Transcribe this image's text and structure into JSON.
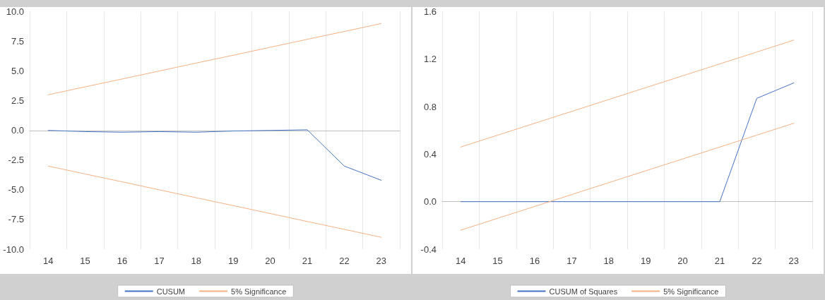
{
  "chart_data": [
    {
      "type": "line",
      "categories": [
        "14",
        "15",
        "16",
        "17",
        "18",
        "19",
        "20",
        "21",
        "22",
        "23"
      ],
      "ylim": [
        -10,
        10
      ],
      "yticks": [
        {
          "value": -10,
          "label": "-10.0"
        },
        {
          "value": -7.5,
          "label": "-7.5"
        },
        {
          "value": -5,
          "label": "-5.0"
        },
        {
          "value": -2.5,
          "label": "-2.5"
        },
        {
          "value": 0,
          "label": "0.0"
        },
        {
          "value": 2.5,
          "label": "2.5"
        },
        {
          "value": 5,
          "label": "5.0"
        },
        {
          "value": 7.5,
          "label": "7.5"
        },
        {
          "value": 10,
          "label": "10.0"
        }
      ],
      "grid": "x",
      "legend": "bottom",
      "marker": "none",
      "line_style": "solid",
      "series": [
        {
          "name": "CUSUM",
          "color": "#4472c4",
          "values": [
            0,
            -0.1,
            -0.15,
            -0.1,
            -0.15,
            -0.05,
            0,
            0.05,
            -3.0,
            -4.2
          ]
        },
        {
          "name": "5% Significance",
          "color": "#f4b183",
          "values": [
            3.0,
            3.67,
            4.33,
            5.0,
            5.67,
            6.33,
            7.0,
            7.67,
            8.33,
            9.0
          ]
        },
        {
          "color": "#f4b183",
          "values": [
            -3.0,
            -3.67,
            -4.33,
            -5.0,
            -5.67,
            -6.33,
            -7.0,
            -7.67,
            -8.33,
            -9.0
          ]
        }
      ]
    },
    {
      "type": "line",
      "categories": [
        "14",
        "15",
        "16",
        "17",
        "18",
        "19",
        "20",
        "21",
        "22",
        "23"
      ],
      "ylim": [
        -0.4,
        1.6
      ],
      "yticks": [
        -0.4,
        {
          "value": 0,
          "label": "0.0"
        },
        0.4,
        0.8,
        1.2,
        1.6
      ],
      "grid": "x",
      "legend": "bottom",
      "marker": "none",
      "line_style": "solid",
      "series": [
        {
          "name": "CUSUM of Squares",
          "color": "#4472c4",
          "values": [
            0,
            0,
            0,
            0,
            0,
            0,
            0,
            0,
            0.87,
            1.0
          ]
        },
        {
          "name": "5% Significance",
          "color": "#f4b183",
          "values": [
            0.46,
            0.56,
            0.66,
            0.76,
            0.86,
            0.96,
            1.06,
            1.16,
            1.26,
            1.36
          ]
        },
        {
          "color": "#f4b183",
          "values": [
            -0.24,
            -0.14,
            -0.04,
            0.06,
            0.16,
            0.26,
            0.36,
            0.46,
            0.56,
            0.66
          ]
        }
      ]
    }
  ]
}
